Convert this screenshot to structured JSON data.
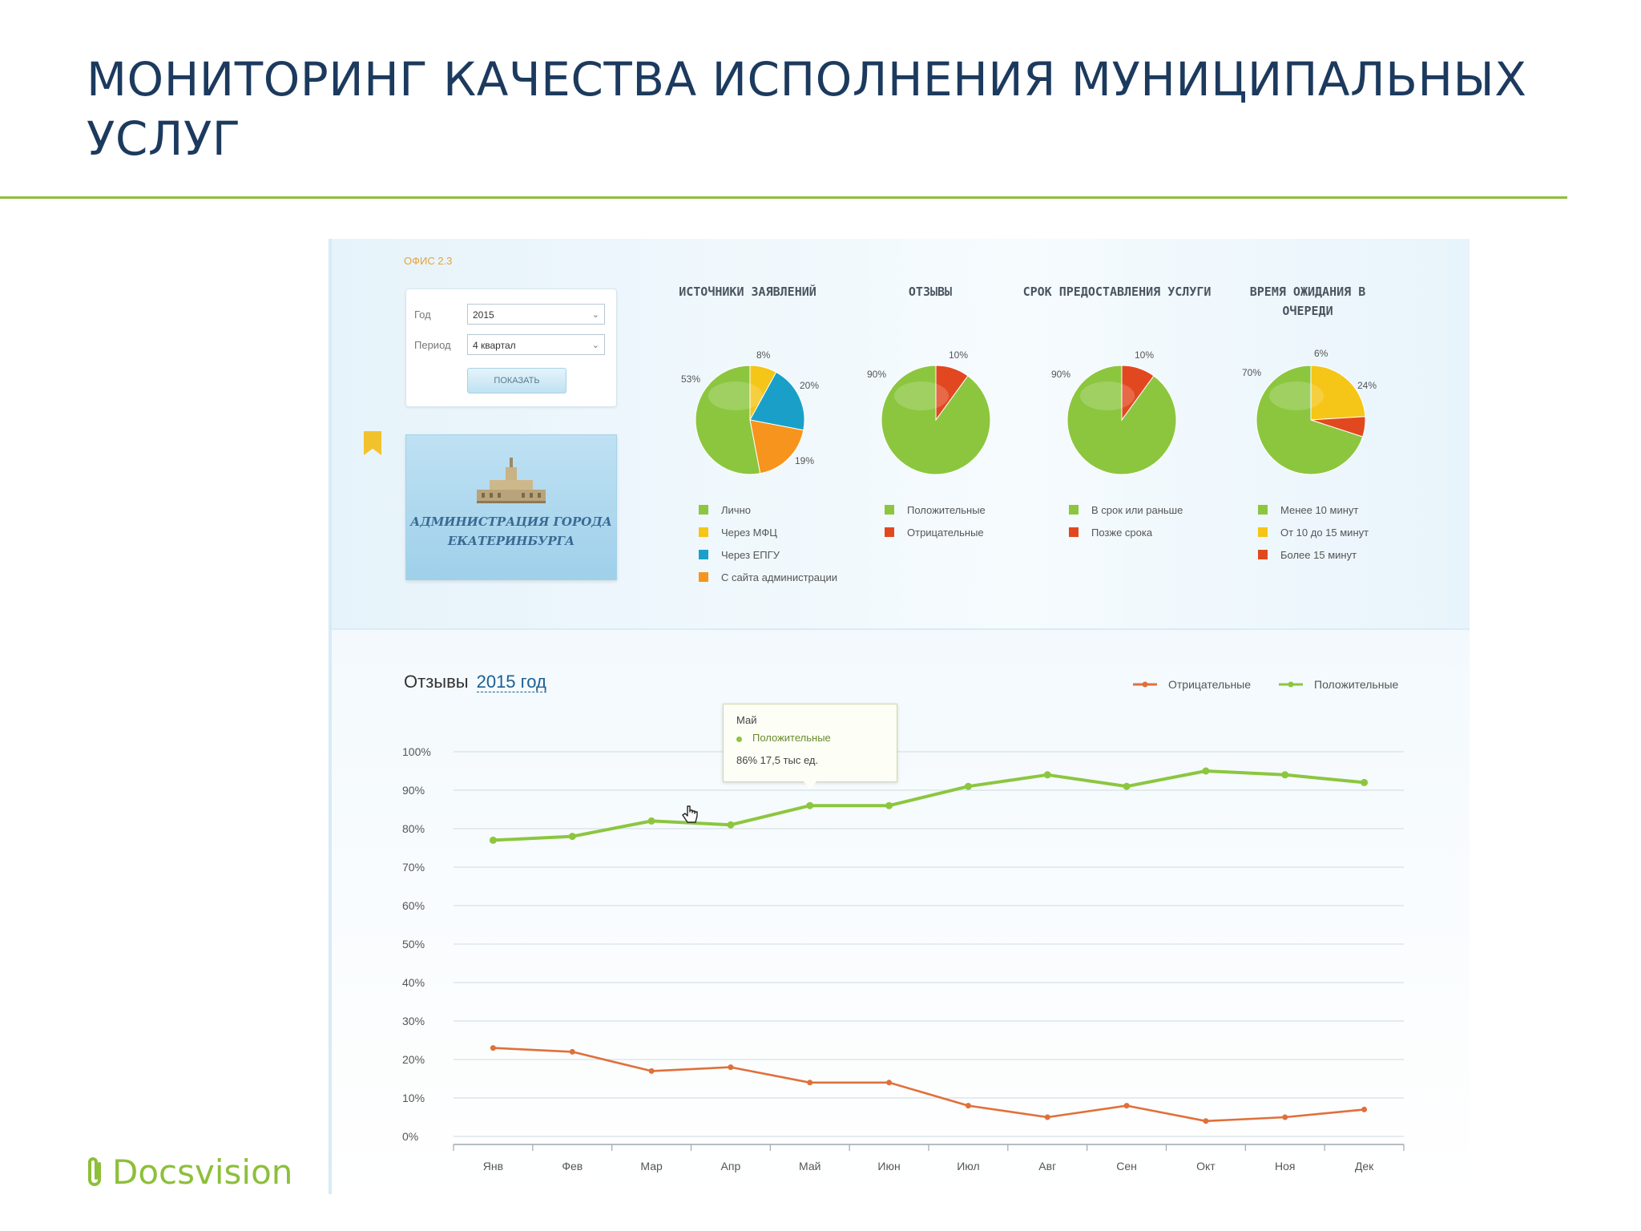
{
  "slide": {
    "title": "МОНИТОРИНГ КАЧЕСТВА ИСПОЛНЕНИЯ МУНИЦИПАЛЬНЫХ УСЛУГ",
    "brand": "Docsvision"
  },
  "dashboard": {
    "breadcrumb": "ОФИС 2.3",
    "filters": {
      "year_label": "Год",
      "year_value": "2015",
      "period_label": "Период",
      "period_value": "4 квартал",
      "show_button": "ПОКАЗАТЬ"
    },
    "admin_card": {
      "line1": "АДМИНИСТРАЦИЯ ГОРОДА",
      "line2": "ЕКАТЕРИНБУРГА"
    },
    "pies": [
      {
        "title": "ИСТОЧНИКИ ЗАЯВЛЕНИЙ",
        "slices": [
          {
            "label": "Лично",
            "value": 53,
            "text": "53%",
            "color": "#8cc63f"
          },
          {
            "label": "Через МФЦ",
            "value": 8,
            "text": "8%",
            "color": "#f5c518"
          },
          {
            "label": "Через ЕПГУ",
            "value": 20,
            "text": "20%",
            "color": "#1aa0c8"
          },
          {
            "label": "С сайта администрации",
            "value": 19,
            "text": "19%",
            "color": "#f7941d"
          }
        ]
      },
      {
        "title": "ОТЗЫВЫ",
        "slices": [
          {
            "label": "Положительные",
            "value": 90,
            "text": "90%",
            "color": "#8cc63f"
          },
          {
            "label": "Отрицательные",
            "value": 10,
            "text": "10%",
            "color": "#e2481f"
          }
        ]
      },
      {
        "title": "СРОК ПРЕДОСТАВЛЕНИЯ УСЛУГИ",
        "slices": [
          {
            "label": "В срок или раньше",
            "value": 90,
            "text": "90%",
            "color": "#8cc63f"
          },
          {
            "label": "Позже срока",
            "value": 10,
            "text": "10%",
            "color": "#e2481f"
          }
        ]
      },
      {
        "title": "ВРЕМЯ ОЖИДАНИЯ В ОЧЕРЕДИ",
        "slices": [
          {
            "label": "Менее 10 минут",
            "value": 70,
            "text": "70%",
            "color": "#8cc63f"
          },
          {
            "label": "От 10 до 15 минут",
            "value": 24,
            "text": "24%",
            "color": "#f5c518"
          },
          {
            "label": "Более 15 минут",
            "value": 6,
            "text": "6%",
            "color": "#e2481f"
          }
        ]
      }
    ],
    "line_chart": {
      "title": "Отзывы",
      "year_link": "2015 год",
      "legend_negative": "Отрицательные",
      "legend_positive": "Положительные",
      "tooltip": {
        "month": "Май",
        "series": "Положительные",
        "value": "86%  17,5 тыс ед."
      }
    }
  },
  "chart_data": {
    "type": "line",
    "title": "Отзывы 2015 год",
    "x": [
      "Янв",
      "Фев",
      "Мар",
      "Апр",
      "Май",
      "Июн",
      "Июл",
      "Авг",
      "Сен",
      "Окт",
      "Ноя",
      "Дек"
    ],
    "y_ticks": [
      "100%",
      "90%",
      "80%",
      "70%",
      "60%",
      "50%",
      "40%",
      "30%",
      "20%",
      "10%",
      "0%"
    ],
    "ylim": [
      0,
      100
    ],
    "grid": true,
    "legend_position": "top-right",
    "series": [
      {
        "name": "Отрицательные",
        "color": "#e0703a",
        "values": [
          23,
          22,
          17,
          18,
          14,
          14,
          8,
          5,
          8,
          4,
          5,
          7
        ]
      },
      {
        "name": "Положительные",
        "color": "#8cc63f",
        "values": [
          77,
          78,
          82,
          81,
          86,
          86,
          91,
          94,
          91,
          95,
          94,
          92
        ]
      }
    ]
  }
}
